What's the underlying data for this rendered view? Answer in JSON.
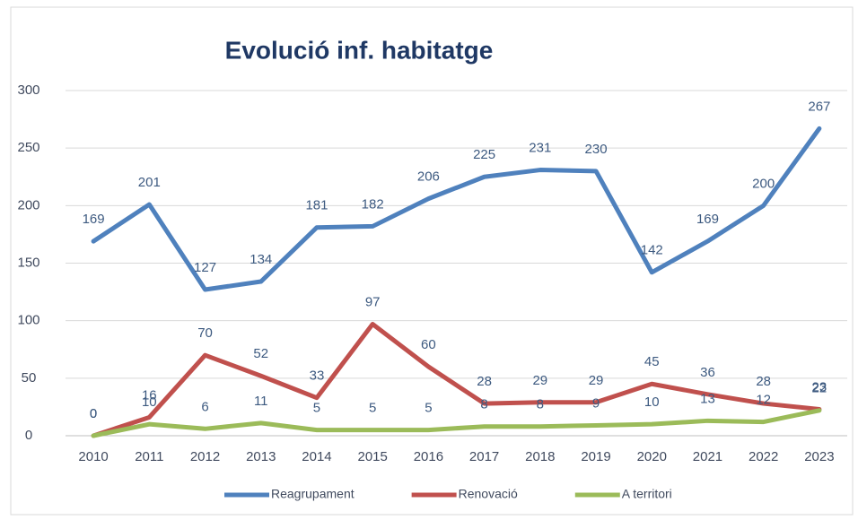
{
  "chart_data": {
    "type": "line",
    "title": "Evolució inf. habitatge",
    "categories": [
      "2010",
      "2011",
      "2012",
      "2013",
      "2014",
      "2015",
      "2016",
      "2017",
      "2018",
      "2019",
      "2020",
      "2021",
      "2022",
      "2023"
    ],
    "series": [
      {
        "name": "Reagrupament",
        "color": "#4f81bd",
        "values": [
          169,
          201,
          127,
          134,
          181,
          182,
          206,
          225,
          231,
          230,
          142,
          169,
          200,
          267
        ]
      },
      {
        "name": "Renovació",
        "color": "#c0504d",
        "values": [
          0,
          16,
          70,
          52,
          33,
          97,
          60,
          28,
          29,
          29,
          45,
          36,
          28,
          23
        ]
      },
      {
        "name": "A territori",
        "color": "#9bbb59",
        "values": [
          0,
          10,
          6,
          11,
          5,
          5,
          5,
          8,
          8,
          9,
          10,
          13,
          12,
          22
        ]
      }
    ],
    "ylim": [
      0,
      300
    ],
    "yticks": [
      0,
      50,
      100,
      150,
      200,
      250,
      300
    ],
    "grid": true,
    "legend": "bottom"
  }
}
